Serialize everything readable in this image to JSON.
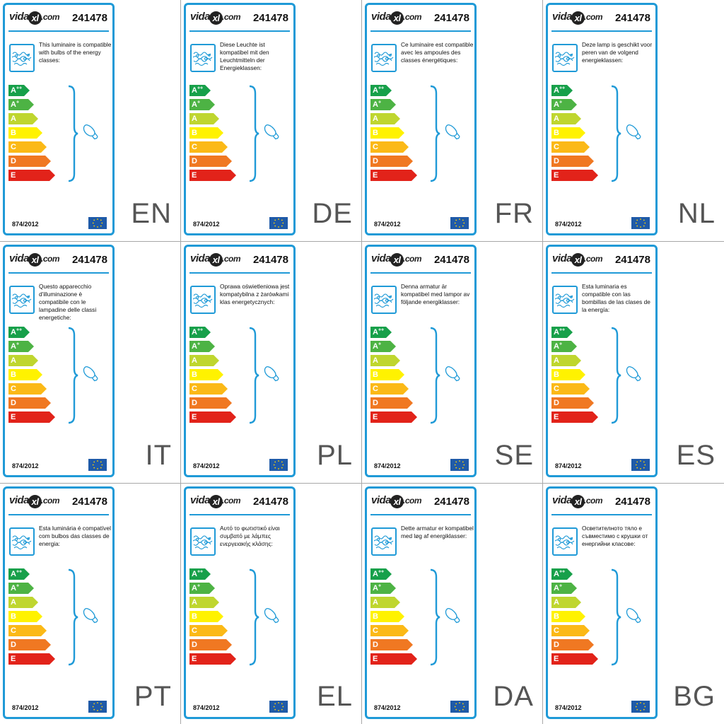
{
  "brand": {
    "name_pre": "vida",
    "name_mark": "xl",
    "name_post": ".com"
  },
  "product_code": "241478",
  "regulation": "874/2012",
  "classes": [
    "A++",
    "A+",
    "A",
    "B",
    "C",
    "D",
    "E"
  ],
  "class_colors": [
    "#17a04a",
    "#4db344",
    "#bfd62f",
    "#fff200",
    "#fbb917",
    "#f07822",
    "#e2231a"
  ],
  "labels": [
    {
      "lang": "EN",
      "text": "This luminaire is compatible with bulbs of the energy classes:"
    },
    {
      "lang": "DE",
      "text": "Diese Leuchte ist kompatibel mit den Leuchtmitteln der Energieklassen:"
    },
    {
      "lang": "FR",
      "text": "Ce luminaire est compatible avec les ampoules des classes énergétiques:"
    },
    {
      "lang": "NL",
      "text": "Deze lamp is geschikt voor peren van de volgend energieklassen:"
    },
    {
      "lang": "IT",
      "text": "Questo apparecchio d'illuminazione è compatibile con le lampadine delle classi energetiche:"
    },
    {
      "lang": "PL",
      "text": "Oprawa oświetleniowa jest kompatybilna z żarówkami klas energetycznych:"
    },
    {
      "lang": "SE",
      "text": "Denna armatur är kompatibel med lampor av följande energiklasser:"
    },
    {
      "lang": "ES",
      "text": "Esta luminaria es compatible con las bombillas de las clases de la energía:"
    },
    {
      "lang": "PT",
      "text": "Esta luminária é compatível com bulbos das classes de energia:"
    },
    {
      "lang": "EL",
      "text": "Αυτό το φωτιστικό είναι συμβατό με λάμπες ενεργειακής κλάσης:"
    },
    {
      "lang": "DA",
      "text": "Dette armatur er kompatibel med løg af energiklasser:"
    },
    {
      "lang": "BG",
      "text": "Осветителното тяло е съвместимо с крушки от енергийни класове:"
    }
  ]
}
